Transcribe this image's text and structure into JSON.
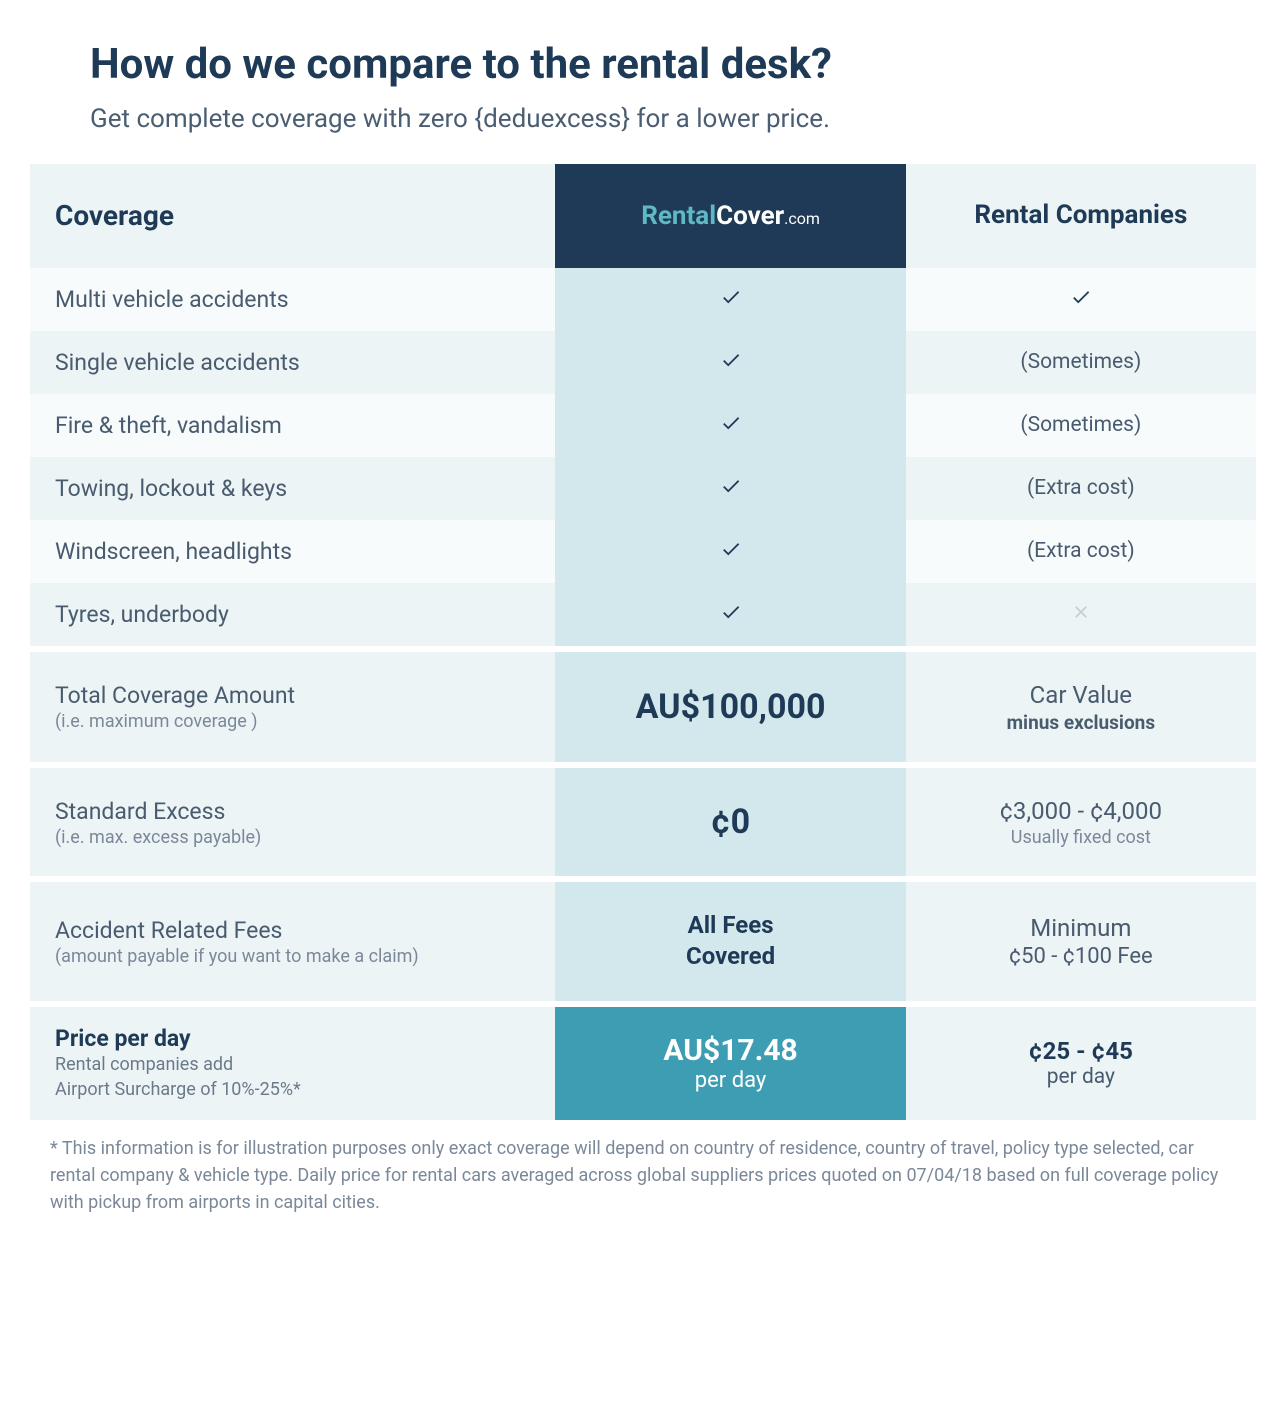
{
  "header": {
    "title": "How do we compare to the rental desk?",
    "subtitle": "Get complete coverage with zero {deduexcess} for a lower price."
  },
  "table": {
    "col_headers": {
      "coverage": "Coverage",
      "logo_part1": "Rental",
      "logo_part2": "Cover",
      "logo_part3": ".com",
      "companies": "Rental Companies"
    },
    "features": [
      {
        "label": "Multi vehicle accidents",
        "rental": "check",
        "companies": "check",
        "companies_text": ""
      },
      {
        "label": "Single vehicle accidents",
        "rental": "check",
        "companies": "text",
        "companies_text": "(Sometimes)"
      },
      {
        "label": "Fire & theft, vandalism",
        "rental": "check",
        "companies": "text",
        "companies_text": "(Sometimes)"
      },
      {
        "label": "Towing, lockout & keys",
        "rental": "check",
        "companies": "text",
        "companies_text": "(Extra cost)"
      },
      {
        "label": "Windscreen, headlights",
        "rental": "check",
        "companies": "text",
        "companies_text": "(Extra cost)"
      },
      {
        "label": "Tyres, underbody",
        "rental": "check",
        "companies": "x",
        "companies_text": ""
      }
    ],
    "summaries": [
      {
        "label": "Total Coverage Amount",
        "sublabel": "(i.e. maximum coverage )",
        "rental_big": "AU$100,000",
        "rental_sub": "",
        "comp_main": "Car Value",
        "comp_sub": "minus exclusions",
        "comp_sub_bold": true
      },
      {
        "label": "Standard Excess",
        "sublabel": "(i.e. max. excess payable)",
        "rental_big": "¢0",
        "rental_sub": "",
        "comp_main": "¢3,000 - ¢4,000",
        "comp_sub": "Usually fixed cost",
        "comp_sub_bold": false
      },
      {
        "label": "Accident Related Fees",
        "sublabel": "(amount payable if you want to make a claim)",
        "rental_big": "",
        "rental_bold_lines": [
          "All Fees",
          "Covered"
        ],
        "comp_main": "Minimum",
        "comp_sub": "¢50 - ¢100 Fee",
        "comp_sub_bold": false,
        "comp_main_size": "normal"
      }
    ],
    "price": {
      "label": "Price per day",
      "sublabel_line1": "Rental companies add",
      "sublabel_line2": "Airport Surcharge of 10%-25%*",
      "rental_price": "AU$17.48",
      "rental_per": "per day",
      "comp_price": "¢25 - ¢45",
      "comp_per": "per day"
    }
  },
  "footnote": "* This information is for illustration purposes only exact coverage will depend on country of residence, country of travel, policy type selected, car rental company & vehicle type. Daily price for rental cars averaged across global suppliers prices quoted on 07/04/18 based on full coverage policy with pickup from airports in capital cities.",
  "colors": {
    "dark_navy": "#1e3a56",
    "light_blue": "#ecf4f6",
    "mid_blue": "#d2e8ec",
    "teal": "#3d9db3",
    "logo_teal": "#5eb8c5",
    "text_gray": "#495b6e",
    "muted_gray": "#7a8899"
  }
}
